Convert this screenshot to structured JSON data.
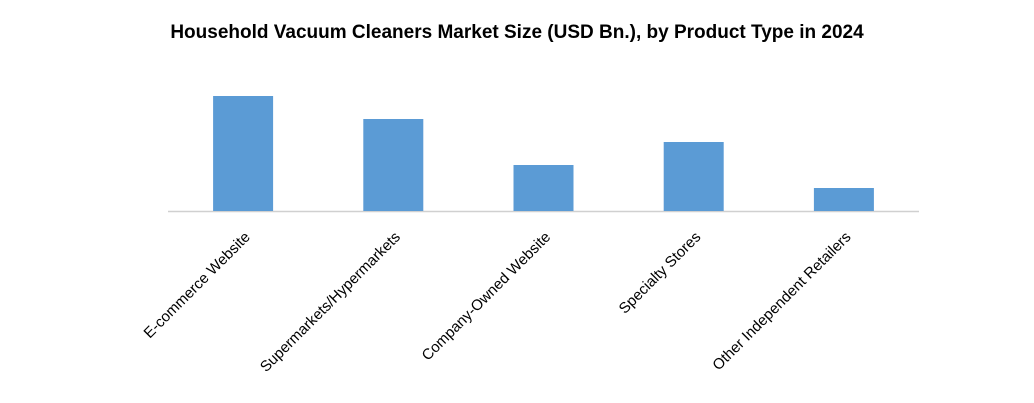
{
  "chart_data": {
    "type": "bar",
    "title": "Household Vacuum Cleaners Market Size (USD Bn.), by Product Type in 2024",
    "categories": [
      "E-commerce Website",
      "Supermarkets/Hypermarkets",
      "Company-Owned Website",
      "Specialty Stores",
      "Other Independent Retailers"
    ],
    "values": [
      5,
      4,
      2,
      3,
      1
    ],
    "color": "#5b9bd5"
  }
}
